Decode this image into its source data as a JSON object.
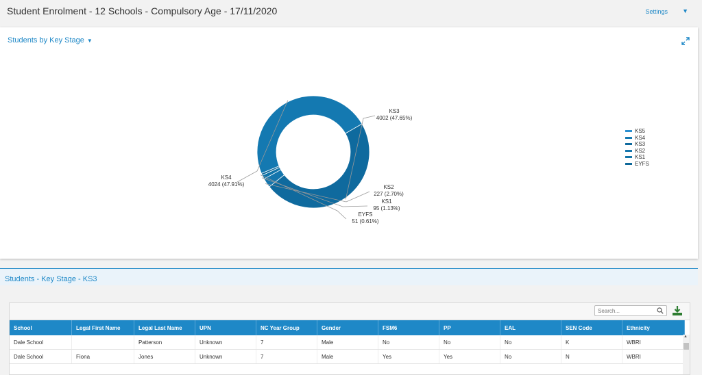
{
  "header": {
    "title": "Student Enrolment - 12 Schools - Compulsory Age - 17/11/2020",
    "settings_label": "Settings",
    "settings_caret": "▼"
  },
  "chart_panel": {
    "title": "Students by Key Stage",
    "title_caret": "▼",
    "expand_icon": "expand-icon"
  },
  "chart_data": {
    "type": "pie",
    "variant": "donut",
    "slices": [
      {
        "label": "KS3",
        "value": 4002,
        "percent_label": "4002 (47.65%)",
        "color": "#0f6a9e"
      },
      {
        "label": "KS2",
        "value": 227,
        "percent_label": "227 (2.70%)",
        "color": "#1576ad"
      },
      {
        "label": "KS1",
        "value": 95,
        "percent_label": "95 (1.13%)",
        "color": "#1274a8"
      },
      {
        "label": "EYFS",
        "value": 51,
        "percent_label": "51 (0.61%)",
        "color": "#0e6899"
      },
      {
        "label": "KS4",
        "value": 4024,
        "percent_label": "4024 (47.91%)",
        "color": "#1479b1"
      }
    ],
    "legend": [
      "KS5",
      "KS4",
      "KS3",
      "KS2",
      "KS1",
      "EYFS"
    ],
    "legend_colors": [
      "#2a8fd0",
      "#1479b1",
      "#0f6a9e",
      "#1576ad",
      "#1274a8",
      "#0e6899"
    ],
    "legend_placement": "right"
  },
  "section": {
    "title": "Students - Key Stage - KS3"
  },
  "grid": {
    "search_placeholder": "Search...",
    "columns": [
      "School",
      "Legal First Name",
      "Legal Last Name",
      "UPN",
      "NC Year Group",
      "Gender",
      "FSM6",
      "PP",
      "EAL",
      "SEN Code",
      "Ethnicity"
    ],
    "rows": [
      [
        "Dale School",
        "",
        "Patterson",
        "Unknown",
        "7",
        "Male",
        "No",
        "No",
        "No",
        "K",
        "WBRI"
      ],
      [
        "Dale School",
        "Fiona",
        "Jones",
        "Unknown",
        "7",
        "Male",
        "Yes",
        "Yes",
        "No",
        "N",
        "WBRI"
      ]
    ]
  }
}
